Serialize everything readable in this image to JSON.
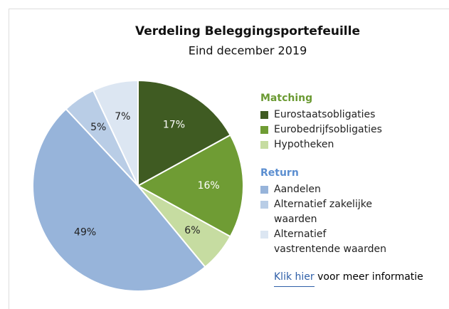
{
  "chart_data": {
    "type": "pie",
    "title": "Verdeling Beleggingsportefeuille",
    "subtitle": "Eind december 2019",
    "groups": [
      {
        "name": "Matching",
        "color": "#6b9a33",
        "categories": [
          "Eurostaatsobligaties",
          "Eurobedrijfsobligaties",
          "Hypotheken"
        ],
        "values": [
          17,
          16,
          6
        ],
        "value_labels": [
          "17%",
          "16%",
          "6%"
        ],
        "colors": [
          "#3f5b22",
          "#6f9c34",
          "#c6dca1"
        ]
      },
      {
        "name": "Return",
        "color": "#5b8ed0",
        "categories": [
          "Aandelen",
          "Alternatief zakelijke waarden",
          "Alternatief vastrentende waarden"
        ],
        "values": [
          49,
          5,
          7
        ],
        "value_labels": [
          "49%",
          "5%",
          "7%"
        ],
        "colors": [
          "#97b4da",
          "#b9cde6",
          "#dce6f2"
        ]
      }
    ],
    "link": {
      "text": "Klik hier",
      "rest": "voor meer informatie"
    }
  }
}
